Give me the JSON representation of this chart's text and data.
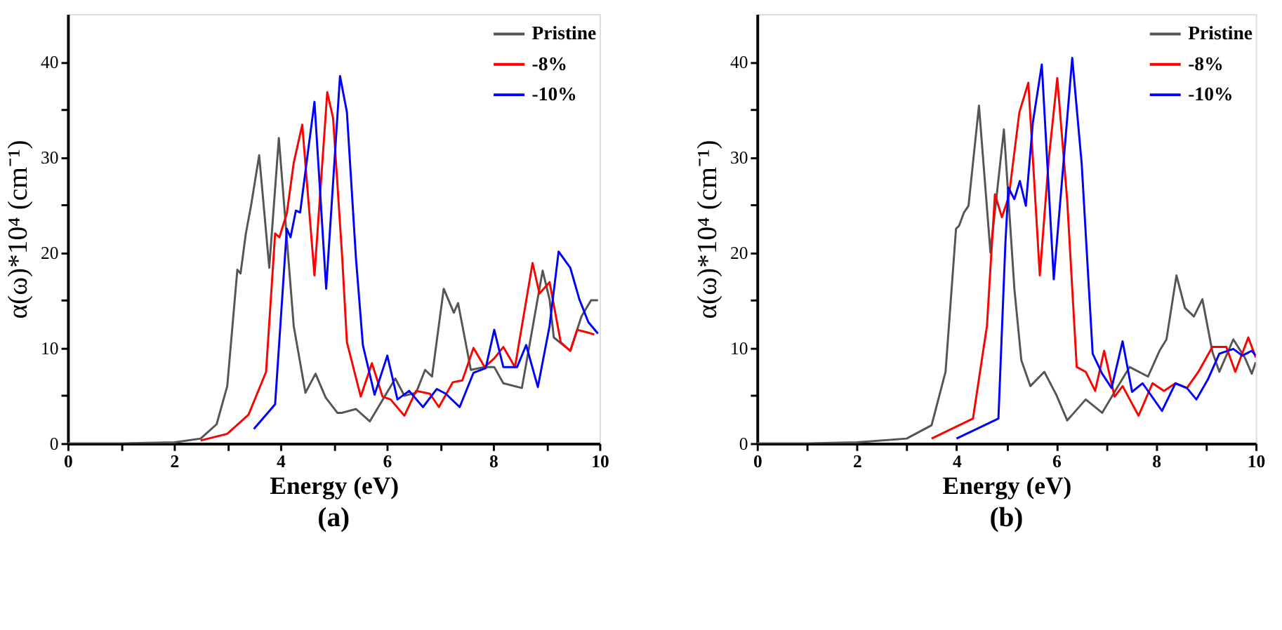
{
  "chart_data": [
    {
      "type": "line",
      "title": "(a)",
      "xlabel": "Energy (eV)",
      "ylabel": "α(ω)*10⁴ (cm⁻¹)",
      "xlim": [
        0,
        10
      ],
      "ylim": [
        0,
        45
      ],
      "xticks": [
        0,
        {
          "value": 1,
          "label": null
        },
        2,
        {
          "value": 3,
          "label": null
        },
        4,
        {
          "value": 5,
          "label": null
        },
        6,
        {
          "value": 7,
          "label": null
        },
        8,
        {
          "value": 9,
          "label": null
        },
        10
      ],
      "yticks": [
        0,
        {
          "value": 5,
          "label": null
        },
        10,
        {
          "value": 15,
          "label": null
        },
        20,
        {
          "value": 25,
          "label": null
        },
        30,
        {
          "value": 35,
          "label": null
        },
        40
      ],
      "grid": false,
      "legend": "top right",
      "marker": "none",
      "line_style": "solid",
      "series": [
        {
          "name": "Pristine",
          "color": "#555555",
          "x": [
            0,
            1,
            2,
            2.5,
            2.8,
            3.0,
            3.19,
            3.25,
            3.35,
            3.45,
            3.6,
            3.79,
            3.97,
            4.25,
            4.47,
            4.66,
            4.85,
            5.07,
            5.16,
            5.42,
            5.68,
            6.16,
            6.33,
            6.55,
            6.72,
            6.85,
            7.07,
            7.26,
            7.34,
            7.58,
            7.84,
            8.02,
            8.19,
            8.54,
            8.93,
            9.06,
            9.14,
            9.45,
            9.66,
            9.84,
            9.97
          ],
          "values": [
            0,
            0,
            0.1,
            0.5,
            2,
            6,
            18.2,
            17.8,
            22,
            25,
            30.2,
            18.4,
            32,
            12.3,
            5.3,
            7.3,
            4.8,
            3.2,
            3.2,
            3.6,
            2.3,
            6.8,
            5,
            5.3,
            7.7,
            7,
            16.2,
            13.7,
            14.7,
            7.7,
            8,
            8,
            6.3,
            5.8,
            18.1,
            15.1,
            11.1,
            9.7,
            13.3,
            15,
            15
          ]
        },
        {
          "name": "-8%",
          "color": "#ff0000",
          "x": [
            2.5,
            3.0,
            3.4,
            3.73,
            3.9,
            3.98,
            4.12,
            4.25,
            4.41,
            4.64,
            4.88,
            4.99,
            5.16,
            5.25,
            5.51,
            5.72,
            5.92,
            6.07,
            6.33,
            6.55,
            6.81,
            6.98,
            7.24,
            7.42,
            7.63,
            7.84,
            8.02,
            8.19,
            8.41,
            8.74,
            8.87,
            9.06,
            9.27,
            9.45,
            9.58,
            9.79,
            9.9
          ],
          "values": [
            0.3,
            1,
            3,
            7.5,
            22,
            21.6,
            24.1,
            29.4,
            33.4,
            17.6,
            36.8,
            34.1,
            19.6,
            10.6,
            4.9,
            8.4,
            4.9,
            4.6,
            2.9,
            5.5,
            5.2,
            3.8,
            6.4,
            6.6,
            10,
            8,
            8.9,
            10.1,
            8,
            18.9,
            15.7,
            16.9,
            10.6,
            9.7,
            11.9,
            11.6,
            11.4
          ]
        },
        {
          "name": "-10%",
          "color": "#0000ff",
          "x": [
            3.5,
            3.9,
            4.12,
            4.19,
            4.29,
            4.37,
            4.64,
            4.86,
            5.12,
            5.25,
            5.42,
            5.55,
            5.77,
            6.01,
            6.2,
            6.42,
            6.68,
            6.94,
            7.11,
            7.37,
            7.63,
            7.86,
            8.02,
            8.19,
            8.45,
            8.62,
            8.84,
            9.06,
            9.23,
            9.45,
            9.62,
            9.79,
            9.97
          ],
          "values": [
            1.5,
            4.1,
            22.5,
            21.6,
            24.4,
            24.2,
            35.8,
            16.2,
            38.5,
            34.7,
            19.4,
            10.3,
            5.1,
            9.2,
            4.6,
            5.5,
            3.8,
            5.7,
            5.2,
            3.8,
            7.4,
            7.9,
            11.9,
            8,
            8,
            10.3,
            5.9,
            12.3,
            20.1,
            18.4,
            15.1,
            12.7,
            11.5
          ]
        }
      ]
    },
    {
      "type": "line",
      "title": "(b)",
      "xlabel": "Energy (eV)",
      "ylabel": "α(ω)*10⁴ (cm⁻¹)",
      "xlim": [
        0,
        10
      ],
      "ylim": [
        0,
        45
      ],
      "xticks": [
        0,
        {
          "value": 1,
          "label": null
        },
        2,
        {
          "value": 3,
          "label": null
        },
        4,
        {
          "value": 5,
          "label": null
        },
        6,
        {
          "value": 7,
          "label": null
        },
        8,
        {
          "value": 9,
          "label": null
        },
        10
      ],
      "yticks": [
        0,
        {
          "value": 5,
          "label": null
        },
        10,
        {
          "value": 15,
          "label": null
        },
        20,
        {
          "value": 25,
          "label": null
        },
        30,
        {
          "value": 35,
          "label": null
        },
        40
      ],
      "grid": false,
      "legend": "top right",
      "marker": "none",
      "line_style": "solid",
      "series": [
        {
          "name": "Pristine",
          "color": "#555555",
          "x": [
            0,
            1,
            2,
            3.0,
            3.5,
            3.78,
            3.99,
            4.05,
            4.15,
            4.24,
            4.45,
            4.68,
            4.95,
            5.16,
            5.3,
            5.48,
            5.76,
            6.0,
            6.22,
            6.59,
            6.92,
            7.24,
            7.47,
            7.84,
            8.07,
            8.21,
            8.41,
            8.58,
            8.76,
            8.93,
            9.13,
            9.27,
            9.55,
            9.78,
            9.92,
            10
          ],
          "values": [
            0,
            0,
            0.1,
            0.5,
            1.9,
            7.5,
            22.5,
            22.8,
            24.2,
            24.9,
            35.4,
            20,
            32.9,
            16.2,
            8.7,
            6,
            7.5,
            5.1,
            2.4,
            4.6,
            3.2,
            6,
            8,
            7,
            9.7,
            10.9,
            17.6,
            14.2,
            13.3,
            15.1,
            9.6,
            7.5,
            10.9,
            9,
            7.3,
            8.5
          ]
        },
        {
          "name": "-8%",
          "color": "#ff0000",
          "x": [
            3.5,
            4.33,
            4.61,
            4.77,
            4.91,
            5.05,
            5.26,
            5.44,
            5.67,
            5.85,
            6.02,
            6.22,
            6.41,
            6.59,
            6.78,
            6.96,
            7.17,
            7.33,
            7.65,
            7.93,
            8.16,
            8.39,
            8.62,
            8.85,
            9.13,
            9.41,
            9.59,
            9.85,
            10
          ],
          "values": [
            0.5,
            2.6,
            12.3,
            26.1,
            23.7,
            25.9,
            34.7,
            37.8,
            17.6,
            29.8,
            38.3,
            25.4,
            8,
            7.5,
            5.5,
            9.7,
            4.9,
            6,
            2.9,
            6.3,
            5.5,
            6.3,
            5.8,
            7.5,
            10.1,
            10.1,
            7.5,
            11.1,
            9
          ]
        },
        {
          "name": "-10%",
          "color": "#0000ff",
          "x": [
            4.0,
            4.84,
            4.98,
            5.04,
            5.16,
            5.27,
            5.39,
            5.53,
            5.71,
            5.95,
            6.32,
            6.51,
            6.73,
            6.92,
            7.11,
            7.33,
            7.52,
            7.73,
            8.12,
            8.39,
            8.62,
            8.81,
            9.04,
            9.27,
            9.55,
            9.73,
            9.92,
            10
          ],
          "values": [
            0.5,
            2.6,
            21,
            26.8,
            25.6,
            27.5,
            24.9,
            33.6,
            39.7,
            17.2,
            40.4,
            29.3,
            9.4,
            7.3,
            5.8,
            10.7,
            5.4,
            6.3,
            3.4,
            6.3,
            5.8,
            4.6,
            6.7,
            9.4,
            9.9,
            9.2,
            9.7,
            9.2
          ]
        }
      ]
    }
  ]
}
